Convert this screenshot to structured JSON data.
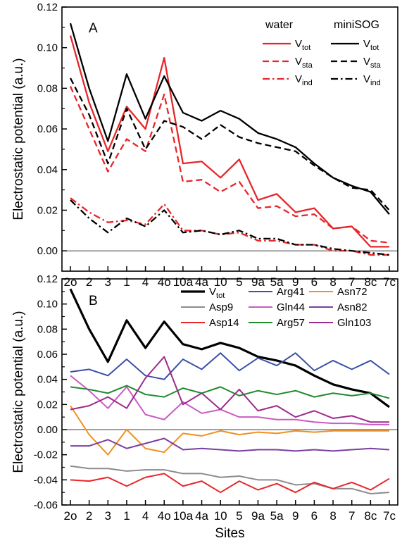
{
  "chart_data": [
    {
      "type": "line",
      "panel_label": "A",
      "ylabel": "Electrostatic potential (a.u.)",
      "xlabel": "",
      "categories": [
        "2o",
        "2",
        "3",
        "1",
        "4",
        "4o",
        "10a",
        "4a",
        "10",
        "5",
        "9a",
        "5a",
        "9",
        "6",
        "8",
        "7",
        "8c",
        "7c"
      ],
      "ylim": [
        -0.01,
        0.12
      ],
      "yticks": [
        0.0,
        0.02,
        0.04,
        0.06,
        0.08,
        0.1,
        0.12
      ],
      "ytick_labels": [
        "0.00",
        "0.02",
        "0.04",
        "0.06",
        "0.08",
        "0.10",
        "0.12"
      ],
      "zero_line": true,
      "legend_groups": [
        "water",
        "miniSOG"
      ],
      "series": [
        {
          "name": "V",
          "sub": "tot",
          "group": "water",
          "color": "#e8262a",
          "dash": "solid",
          "values": [
            0.106,
            0.073,
            0.049,
            0.071,
            0.06,
            0.095,
            0.043,
            0.044,
            0.036,
            0.045,
            0.025,
            0.028,
            0.019,
            0.021,
            0.011,
            0.012,
            0.002,
            0.002
          ]
        },
        {
          "name": "V",
          "sub": "sta",
          "group": "water",
          "color": "#e8262a",
          "dash": "dashed",
          "values": [
            0.081,
            0.06,
            0.039,
            0.055,
            0.049,
            0.077,
            0.034,
            0.035,
            0.029,
            0.034,
            0.021,
            0.022,
            0.017,
            0.018,
            0.011,
            0.012,
            0.005,
            0.004
          ]
        },
        {
          "name": "V",
          "sub": "ind",
          "group": "water",
          "color": "#e8262a",
          "dash": "dashdot",
          "values": [
            0.026,
            0.019,
            0.014,
            0.015,
            0.013,
            0.023,
            0.01,
            0.01,
            0.008,
            0.009,
            0.005,
            0.005,
            0.003,
            0.003,
            0.0,
            0.0,
            -0.002,
            -0.002
          ]
        },
        {
          "name": "V",
          "sub": "tot",
          "group": "miniSOG",
          "color": "#000000",
          "dash": "solid",
          "values": [
            0.112,
            0.08,
            0.054,
            0.087,
            0.065,
            0.086,
            0.068,
            0.064,
            0.069,
            0.065,
            0.058,
            0.055,
            0.051,
            0.043,
            0.036,
            0.032,
            0.029,
            0.018
          ]
        },
        {
          "name": "V",
          "sub": "sta",
          "group": "miniSOG",
          "color": "#000000",
          "dash": "dashed",
          "values": [
            0.085,
            0.067,
            0.043,
            0.07,
            0.05,
            0.064,
            0.061,
            0.055,
            0.062,
            0.056,
            0.053,
            0.051,
            0.049,
            0.042,
            0.036,
            0.031,
            0.03,
            0.02
          ]
        },
        {
          "name": "V",
          "sub": "ind",
          "group": "miniSOG",
          "color": "#000000",
          "dash": "dashdot",
          "values": [
            0.025,
            0.016,
            0.009,
            0.016,
            0.012,
            0.02,
            0.009,
            0.01,
            0.008,
            0.01,
            0.006,
            0.006,
            0.003,
            0.003,
            0.001,
            0.0,
            -0.001,
            -0.002
          ]
        }
      ]
    },
    {
      "type": "line",
      "panel_label": "B",
      "ylabel": "Electrostatic potential (a.u.)",
      "xlabel": "Sites",
      "categories": [
        "2o",
        "2",
        "3",
        "1",
        "4",
        "4o",
        "10a",
        "4a",
        "10",
        "5",
        "9a",
        "5a",
        "9",
        "6",
        "8",
        "7",
        "8c",
        "7c"
      ],
      "ylim": [
        -0.06,
        0.12
      ],
      "yticks": [
        -0.06,
        -0.04,
        -0.02,
        0.0,
        0.02,
        0.04,
        0.06,
        0.08,
        0.1,
        0.12
      ],
      "ytick_labels": [
        "-0.06",
        "-0.04",
        "-0.02",
        "0.00",
        "0.02",
        "0.04",
        "0.06",
        "0.08",
        "0.10",
        "0.12"
      ],
      "zero_line": true,
      "series": [
        {
          "name": "V",
          "sub": "tot",
          "color": "#000000",
          "width": 3.2,
          "values": [
            0.112,
            0.08,
            0.054,
            0.087,
            0.065,
            0.086,
            0.068,
            0.064,
            0.069,
            0.065,
            0.058,
            0.055,
            0.051,
            0.043,
            0.036,
            0.032,
            0.029,
            0.018
          ]
        },
        {
          "name": "Asp9",
          "color": "#8c8c8c",
          "width": 2,
          "values": [
            -0.029,
            -0.031,
            -0.031,
            -0.033,
            -0.032,
            -0.032,
            -0.035,
            -0.035,
            -0.038,
            -0.037,
            -0.04,
            -0.04,
            -0.044,
            -0.043,
            -0.047,
            -0.047,
            -0.051,
            -0.05
          ]
        },
        {
          "name": "Asp14",
          "color": "#e8262a",
          "width": 2,
          "values": [
            -0.04,
            -0.041,
            -0.038,
            -0.045,
            -0.038,
            -0.035,
            -0.045,
            -0.041,
            -0.05,
            -0.041,
            -0.048,
            -0.043,
            -0.05,
            -0.042,
            -0.047,
            -0.042,
            -0.048,
            -0.039
          ]
        },
        {
          "name": "Arg41",
          "color": "#3b4fa8",
          "width": 2,
          "values": [
            0.046,
            0.048,
            0.043,
            0.056,
            0.043,
            0.04,
            0.056,
            0.048,
            0.061,
            0.047,
            0.057,
            0.051,
            0.061,
            0.047,
            0.055,
            0.048,
            0.055,
            0.044
          ]
        },
        {
          "name": "Gln44",
          "color": "#c95bc4",
          "width": 2,
          "values": [
            0.043,
            0.031,
            0.017,
            0.034,
            0.012,
            0.008,
            0.022,
            0.013,
            0.016,
            0.01,
            0.01,
            0.008,
            0.008,
            0.006,
            0.005,
            0.005,
            0.004,
            0.004
          ]
        },
        {
          "name": "Arg57",
          "color": "#1f8a2e",
          "width": 2,
          "values": [
            0.034,
            0.032,
            0.029,
            0.035,
            0.028,
            0.026,
            0.033,
            0.029,
            0.034,
            0.027,
            0.031,
            0.028,
            0.031,
            0.026,
            0.029,
            0.027,
            0.029,
            0.025
          ]
        },
        {
          "name": "Asn72",
          "color": "#f2901e",
          "width": 2,
          "values": [
            0.019,
            -0.004,
            -0.02,
            0.0,
            -0.015,
            -0.018,
            -0.003,
            -0.005,
            -0.001,
            -0.004,
            -0.002,
            -0.003,
            -0.001,
            -0.002,
            -0.001,
            -0.001,
            -0.001,
            -0.001
          ]
        },
        {
          "name": "Asn82",
          "color": "#7b3fa0",
          "width": 2,
          "values": [
            -0.013,
            -0.013,
            -0.008,
            -0.015,
            -0.011,
            -0.007,
            -0.016,
            -0.015,
            -0.016,
            -0.017,
            -0.016,
            -0.016,
            -0.017,
            -0.016,
            -0.017,
            -0.016,
            -0.015,
            -0.016
          ]
        },
        {
          "name": "Gln103",
          "color": "#9c2a8c",
          "width": 2,
          "values": [
            0.016,
            0.019,
            0.026,
            0.017,
            0.041,
            0.058,
            0.02,
            0.029,
            0.016,
            0.032,
            0.015,
            0.019,
            0.01,
            0.015,
            0.009,
            0.011,
            0.006,
            0.006
          ]
        }
      ]
    }
  ]
}
